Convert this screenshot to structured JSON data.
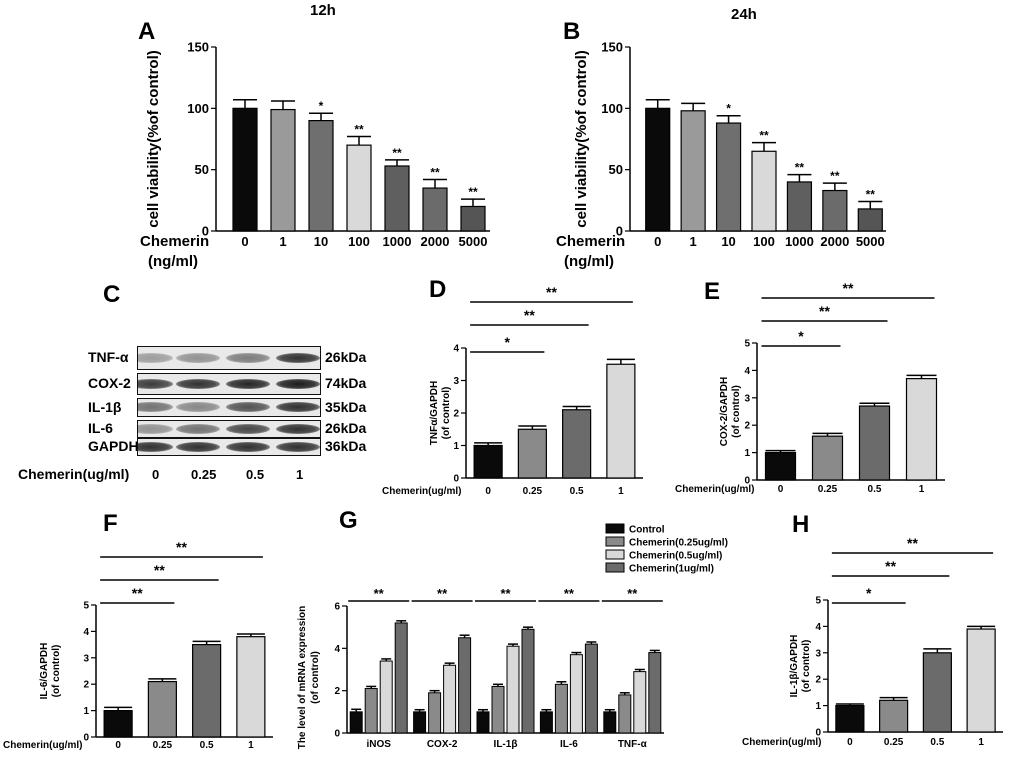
{
  "panels": {
    "A": {
      "letter": "A",
      "time": "12h"
    },
    "B": {
      "letter": "B",
      "time": "24h"
    },
    "C": {
      "letter": "C"
    },
    "D": {
      "letter": "D"
    },
    "E": {
      "letter": "E"
    },
    "F": {
      "letter": "F"
    },
    "G": {
      "letter": "G"
    },
    "H": {
      "letter": "H"
    }
  },
  "blot": {
    "rows": [
      {
        "name": "TNF-α",
        "size": "26kDa",
        "intensity": [
          0.35,
          0.4,
          0.5,
          0.85
        ]
      },
      {
        "name": "COX-2",
        "size": "74kDa",
        "intensity": [
          0.8,
          0.85,
          0.9,
          0.95
        ]
      },
      {
        "name": "IL-1β",
        "size": "35kDa",
        "intensity": [
          0.55,
          0.45,
          0.7,
          0.85
        ]
      },
      {
        "name": "IL-6",
        "size": "26kDa",
        "intensity": [
          0.4,
          0.55,
          0.75,
          0.85
        ]
      },
      {
        "name": "GAPDH",
        "size": "36kDa",
        "intensity": [
          0.85,
          0.85,
          0.85,
          0.85
        ]
      }
    ],
    "x_label": "Chemerin(ug/ml)",
    "concentrations": [
      "0",
      "0.25",
      "0.5",
      "1"
    ]
  },
  "colors": {
    "black": "#0a0a0a",
    "dark_gray": "#6b6b6b",
    "mid_gray": "#8a8a8a",
    "light_gray": "#d9d9d9",
    "gray_a": "#9a9a9a",
    "gray_b": "#5f5f5f"
  },
  "chart_data": [
    {
      "id": "A",
      "type": "bar",
      "categories": [
        "0",
        "1",
        "10",
        "100",
        "1000",
        "2000",
        "5000"
      ],
      "values": [
        100,
        99,
        90,
        70,
        53,
        35,
        20
      ],
      "errors": [
        7,
        7,
        6,
        7,
        5,
        7,
        6
      ],
      "significance": [
        "",
        "",
        "*",
        "**",
        "**",
        "**",
        "**"
      ],
      "colors": [
        "#0a0a0a",
        "#9a9a9a",
        "#6f6f6f",
        "#d9d9d9",
        "#5f5f5f",
        "#6b6b6b",
        "#555555"
      ],
      "ylabel": "cell viability(%of control)",
      "xlabel_line1": "Chemerin",
      "xlabel_line2": "(ng/ml)",
      "ylim": [
        0,
        150
      ],
      "yticks": [
        0,
        50,
        100,
        150
      ]
    },
    {
      "id": "B",
      "type": "bar",
      "categories": [
        "0",
        "1",
        "10",
        "100",
        "1000",
        "2000",
        "5000"
      ],
      "values": [
        100,
        98,
        88,
        65,
        40,
        33,
        18
      ],
      "errors": [
        7,
        6,
        6,
        7,
        6,
        6,
        6
      ],
      "significance": [
        "",
        "",
        "*",
        "**",
        "**",
        "**",
        "**"
      ],
      "colors": [
        "#0a0a0a",
        "#9a9a9a",
        "#6f6f6f",
        "#d9d9d9",
        "#5f5f5f",
        "#6b6b6b",
        "#555555"
      ],
      "ylabel": "cell viability(%of control)",
      "xlabel_line1": "Chemerin",
      "xlabel_line2": "(ng/ml)",
      "ylim": [
        0,
        150
      ],
      "yticks": [
        0,
        50,
        100,
        150
      ]
    },
    {
      "id": "D",
      "type": "bar",
      "categories": [
        "0",
        "0.25",
        "0.5",
        "1"
      ],
      "values": [
        1.0,
        1.5,
        2.1,
        3.5
      ],
      "errors": [
        0.08,
        0.1,
        0.1,
        0.15
      ],
      "colors": [
        "#0a0a0a",
        "#8a8a8a",
        "#6b6b6b",
        "#d9d9d9"
      ],
      "ylabel": "TNFα/GAPDH",
      "ylabel2": "(of control)",
      "xlabel": "Chemerin(ug/ml)",
      "ylim": [
        0,
        4
      ],
      "yticks": [
        0,
        1,
        2,
        3,
        4
      ],
      "brackets": [
        {
          "to": 1,
          "label": "*"
        },
        {
          "to": 2,
          "label": "**"
        },
        {
          "to": 3,
          "label": "**"
        }
      ]
    },
    {
      "id": "E",
      "type": "bar",
      "categories": [
        "0",
        "0.25",
        "0.5",
        "1"
      ],
      "values": [
        1.0,
        1.6,
        2.7,
        3.7
      ],
      "errors": [
        0.07,
        0.1,
        0.1,
        0.12
      ],
      "colors": [
        "#0a0a0a",
        "#8a8a8a",
        "#6b6b6b",
        "#d9d9d9"
      ],
      "ylabel": "COX-2/GAPDH",
      "ylabel2": "(of control)",
      "xlabel": "Chemerin(ug/ml)",
      "ylim": [
        0,
        5
      ],
      "yticks": [
        0,
        1,
        2,
        3,
        4,
        5
      ],
      "brackets": [
        {
          "to": 1,
          "label": "*"
        },
        {
          "to": 2,
          "label": "**"
        },
        {
          "to": 3,
          "label": "**"
        }
      ]
    },
    {
      "id": "F",
      "type": "bar",
      "categories": [
        "0",
        "0.25",
        "0.5",
        "1"
      ],
      "values": [
        1.0,
        2.1,
        3.5,
        3.8
      ],
      "errors": [
        0.12,
        0.1,
        0.12,
        0.1
      ],
      "colors": [
        "#0a0a0a",
        "#8a8a8a",
        "#6b6b6b",
        "#d9d9d9"
      ],
      "ylabel": "IL-6/GAPDH",
      "ylabel2": "(of control)",
      "xlabel": "Chemerin(ug/ml)",
      "ylim": [
        0,
        5
      ],
      "yticks": [
        0,
        1,
        2,
        3,
        4,
        5
      ],
      "brackets": [
        {
          "to": 1,
          "label": "**"
        },
        {
          "to": 2,
          "label": "**"
        },
        {
          "to": 3,
          "label": "**"
        }
      ]
    },
    {
      "id": "G",
      "type": "bar",
      "categories": [
        "iNOS",
        "COX-2",
        "IL-1β",
        "IL-6",
        "TNF-α"
      ],
      "series": [
        {
          "name": "Control",
          "color": "#0a0a0a",
          "values": [
            1.0,
            1.0,
            1.0,
            1.0,
            1.0
          ],
          "errors": [
            0.12,
            0.1,
            0.1,
            0.1,
            0.1
          ]
        },
        {
          "name": "Chemerin(0.25ug/ml)",
          "color": "#8a8a8a",
          "values": [
            2.1,
            1.9,
            2.2,
            2.3,
            1.8
          ],
          "errors": [
            0.1,
            0.1,
            0.1,
            0.12,
            0.1
          ]
        },
        {
          "name": "Chemerin(0.5ug/ml)",
          "color": "#d9d9d9",
          "values": [
            3.4,
            3.2,
            4.1,
            3.7,
            2.9
          ],
          "errors": [
            0.1,
            0.1,
            0.1,
            0.1,
            0.1
          ]
        },
        {
          "name": "Chemerin(1ug/ml)",
          "color": "#6b6b6b",
          "values": [
            5.2,
            4.5,
            4.9,
            4.2,
            3.8
          ],
          "errors": [
            0.1,
            0.12,
            0.1,
            0.1,
            0.1
          ]
        }
      ],
      "significance": [
        "**",
        "**",
        "**",
        "**",
        "**"
      ],
      "ylabel": "The level of mRNA expression",
      "ylabel2": "(of control)",
      "ylim": [
        0,
        6
      ],
      "yticks": [
        0,
        2,
        4,
        6
      ]
    },
    {
      "id": "H",
      "type": "bar",
      "categories": [
        "0",
        "0.25",
        "0.5",
        "1"
      ],
      "values": [
        1.0,
        1.2,
        3.0,
        3.9
      ],
      "errors": [
        0.06,
        0.1,
        0.15,
        0.1
      ],
      "colors": [
        "#0a0a0a",
        "#8a8a8a",
        "#6b6b6b",
        "#d9d9d9"
      ],
      "ylabel": "IL-1β/GAPDH",
      "ylabel2": "(of control)",
      "xlabel": "Chemerin(ug/ml)",
      "ylim": [
        0,
        5
      ],
      "yticks": [
        0,
        1,
        2,
        3,
        4,
        5
      ],
      "brackets": [
        {
          "to": 1,
          "label": "*"
        },
        {
          "to": 2,
          "label": "**"
        },
        {
          "to": 3,
          "label": "**"
        }
      ]
    }
  ]
}
